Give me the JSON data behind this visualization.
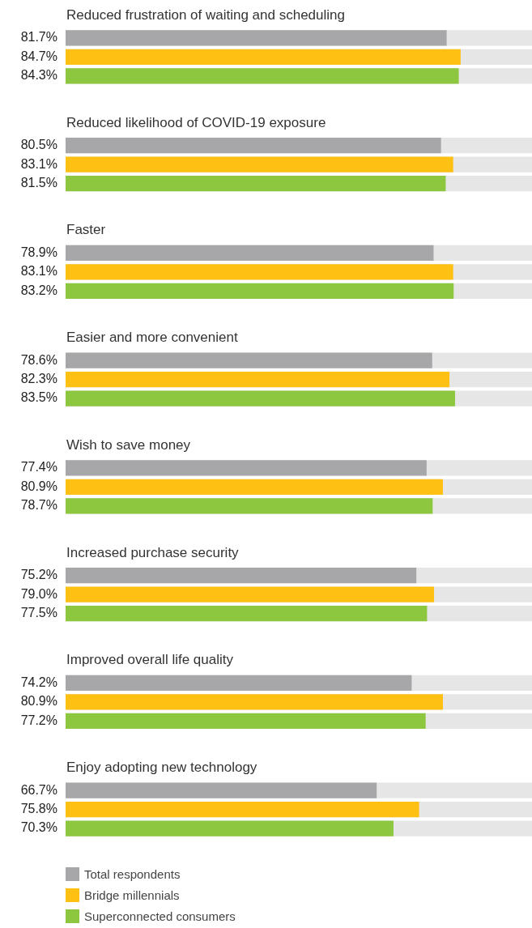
{
  "chart_data": {
    "type": "bar",
    "orientation": "horizontal",
    "categories": [
      "Reduced frustration of waiting and scheduling",
      "Reduced likelihood of COVID-19 exposure",
      "Faster",
      "Easier and more convenient",
      "Wish to save money",
      "Increased purchase security",
      "Improved overall life quality",
      "Enjoy adopting new technology"
    ],
    "series": [
      {
        "name": "Total respondents",
        "color": "#a7a7aa",
        "values": [
          81.7,
          80.5,
          78.9,
          78.6,
          77.4,
          75.2,
          74.2,
          66.7
        ],
        "value_labels": [
          "81.7%",
          "80.5%",
          "78.9%",
          "78.6%",
          "77.4%",
          "75.2%",
          "74.2%",
          "66.7%"
        ]
      },
      {
        "name": "Bridge millennials",
        "color": "#ffc014",
        "values": [
          84.7,
          83.1,
          83.1,
          82.3,
          80.9,
          79.0,
          80.9,
          75.8
        ],
        "value_labels": [
          "84.7%",
          "83.1%",
          "83.1%",
          "82.3%",
          "80.9%",
          "79.0%",
          "80.9%",
          "75.8%"
        ]
      },
      {
        "name": "Superconnected consumers",
        "color": "#8dc63f",
        "values": [
          84.3,
          81.5,
          83.2,
          83.5,
          78.7,
          77.5,
          77.2,
          70.3
        ],
        "value_labels": [
          "84.3%",
          "81.5%",
          "83.2%",
          "83.5%",
          "78.7%",
          "77.5%",
          "77.2%",
          "70.3%"
        ]
      }
    ],
    "xlim": [
      0,
      100
    ],
    "tick_labels": false,
    "grid": false,
    "legend": "bottom"
  }
}
